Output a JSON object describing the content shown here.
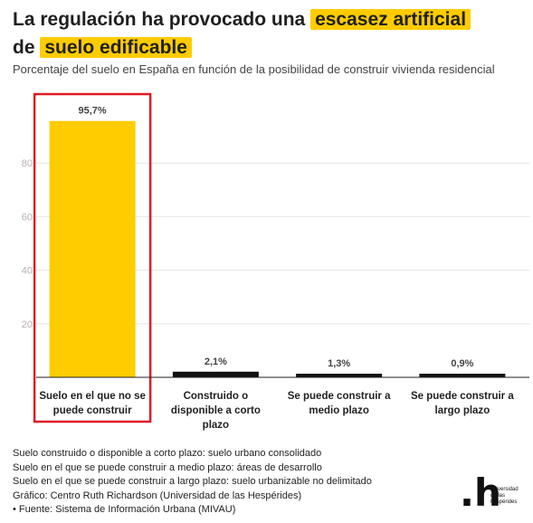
{
  "header": {
    "title_part1": "La regulación ha provocado una",
    "title_hl1": "escasez artificial",
    "title_part2": "de",
    "title_hl2": "suelo edificable",
    "subtitle": "Porcentaje del suelo en España en función de la posibilidad de construir vivienda residencial"
  },
  "chart_data": {
    "type": "bar",
    "categories": [
      [
        "Suelo en el que no se",
        "puede construir"
      ],
      [
        "Construido o",
        "disponible a corto",
        "plazo"
      ],
      [
        "Se puede construir a",
        "medio plazo"
      ],
      [
        "Se puede construir a",
        "largo plazo"
      ]
    ],
    "values": [
      95.7,
      2.1,
      1.3,
      0.9
    ],
    "value_labels": [
      "95,7%",
      "2,1%",
      "1,3%",
      "0,9%"
    ],
    "ylim": [
      0,
      100
    ],
    "yticks": [
      20,
      40,
      60,
      80
    ],
    "grid": true,
    "highlight_index": 0,
    "colors": {
      "highlight_bar": "#ffcc00",
      "bar": "#111111",
      "highlight_box": "#e01b24",
      "grid": "#e6e6e6",
      "tick_label": "#b3b3b3"
    }
  },
  "notes": [
    "Suelo construido o disponible a corto plazo: suelo urbano consolidado",
    "Suelo en el que se puede construir a medio plazo: áreas de desarrollo",
    "Suelo en el que se puede construir a largo plazo: suelo urbanizable no delimitado",
    "Gráfico: Centro Ruth Richardson (Universidad de las Hespérides)",
    "• Fuente: Sistema de Información Urbana (MIVAU)"
  ],
  "logo": {
    "glyph": ".h",
    "text_lines": [
      "universidad",
      "de las",
      "hespérides"
    ]
  }
}
